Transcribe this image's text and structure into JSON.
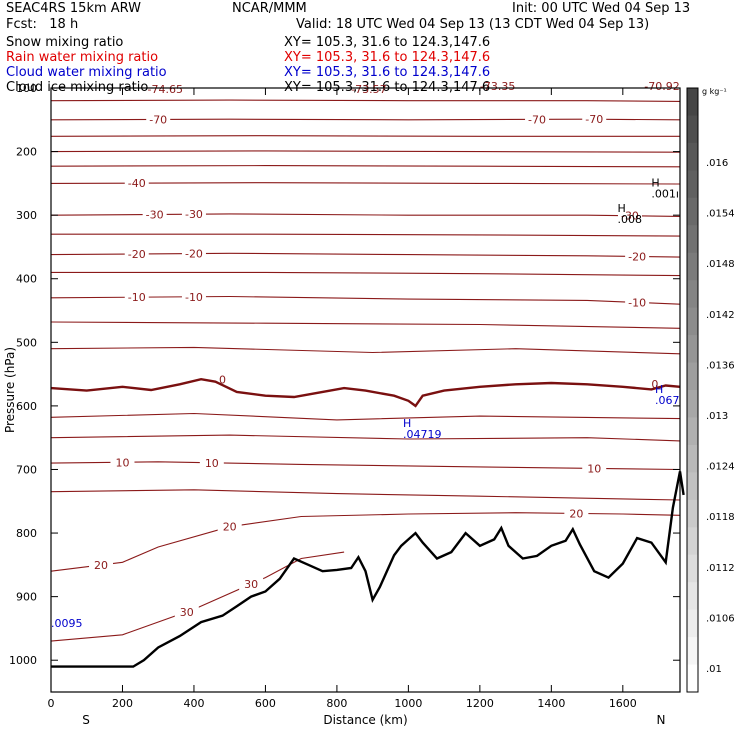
{
  "header": {
    "model": "SEAC4RS 15km ARW",
    "org": "NCAR/MMM",
    "init": "Init: 00 UTC Wed 04 Sep 13",
    "fcst": "Fcst:   18 h",
    "valid": "Valid: 18 UTC Wed 04 Sep 13 (13 CDT Wed 04 Sep 13)"
  },
  "fields": [
    {
      "name": "Snow mixing ratio",
      "xy": "XY= 105.3, 31.6 to 124.3,147.6",
      "color": "#000000"
    },
    {
      "name": "Rain water mixing ratio",
      "xy": "XY= 105.3, 31.6 to 124.3,147.6",
      "color": "#e00000"
    },
    {
      "name": "Cloud water mixing ratio",
      "xy": "XY= 105.3, 31.6 to 124.3,147.6",
      "color": "#0000cc"
    },
    {
      "name": "Cloud ice mixing ratio",
      "xy": "XY= 105.3, 31.6 to 124.3,147.6",
      "color": "#000000"
    }
  ],
  "colorbar": {
    "unit": "g kg⁻¹",
    "labels": [
      ".016",
      ".0154",
      ".0148",
      ".0142",
      ".0136",
      ".013",
      ".0124",
      ".0118",
      ".0112",
      ".0106",
      ".01"
    ]
  },
  "chart_data": {
    "type": "contour cross-section",
    "xlabel": "Distance (km)",
    "ylabel": "Pressure (hPa)",
    "xlim": [
      0,
      1760
    ],
    "ylim": [
      1050,
      100
    ],
    "xticks": [
      0,
      200,
      400,
      600,
      800,
      1000,
      1200,
      1400,
      1600
    ],
    "yticks": [
      100,
      200,
      300,
      400,
      500,
      600,
      700,
      800,
      900,
      1000
    ],
    "end_labels": {
      "left": "S",
      "right": "N"
    },
    "contour_color": "#8b1a1a",
    "freezing_level": [
      [
        0,
        572
      ],
      [
        100,
        576
      ],
      [
        200,
        570
      ],
      [
        280,
        575
      ],
      [
        360,
        566
      ],
      [
        420,
        558
      ],
      [
        460,
        562
      ],
      [
        520,
        578
      ],
      [
        600,
        584
      ],
      [
        680,
        586
      ],
      [
        760,
        578
      ],
      [
        820,
        572
      ],
      [
        880,
        576
      ],
      [
        960,
        584
      ],
      [
        1000,
        592
      ],
      [
        1020,
        600
      ],
      [
        1040,
        584
      ],
      [
        1100,
        576
      ],
      [
        1200,
        570
      ],
      [
        1300,
        566
      ],
      [
        1400,
        564
      ],
      [
        1500,
        566
      ],
      [
        1600,
        570
      ],
      [
        1680,
        574
      ],
      [
        1720,
        568
      ],
      [
        1760,
        570
      ]
    ],
    "isotherms": [
      {
        "label": "-70",
        "labels_at": [
          {
            "x": 300,
            "text": "-70"
          },
          {
            "x": 1360,
            "text": "-70"
          },
          {
            "x": 1520,
            "text": "-70"
          }
        ],
        "points": [
          [
            0,
            150
          ],
          [
            500,
            149
          ],
          [
            1000,
            150
          ],
          [
            1500,
            149
          ],
          [
            1760,
            150
          ]
        ]
      },
      {
        "label": "",
        "points": [
          [
            0,
            120
          ],
          [
            500,
            119
          ],
          [
            1000,
            120
          ],
          [
            1500,
            120
          ],
          [
            1760,
            121
          ]
        ]
      },
      {
        "label": "",
        "points": [
          [
            0,
            176
          ],
          [
            600,
            175
          ],
          [
            1200,
            176
          ],
          [
            1760,
            176
          ]
        ]
      },
      {
        "label": "",
        "points": [
          [
            0,
            200
          ],
          [
            600,
            199
          ],
          [
            1200,
            200
          ],
          [
            1760,
            201
          ]
        ]
      },
      {
        "label": "",
        "points": [
          [
            0,
            223
          ],
          [
            600,
            222
          ],
          [
            1200,
            223
          ],
          [
            1760,
            224
          ]
        ]
      },
      {
        "label": "-40",
        "labels_at": [
          {
            "x": 240,
            "text": "-40"
          }
        ],
        "points": [
          [
            0,
            250
          ],
          [
            600,
            249
          ],
          [
            1200,
            250
          ],
          [
            1760,
            251
          ]
        ]
      },
      {
        "label": "-30",
        "labels_at": [
          {
            "x": 290,
            "text": "-30"
          },
          {
            "x": 400,
            "text": "-30"
          },
          {
            "x": 1620,
            "text": "-30"
          }
        ],
        "points": [
          [
            0,
            300
          ],
          [
            500,
            298
          ],
          [
            1000,
            300
          ],
          [
            1500,
            300
          ],
          [
            1760,
            302
          ]
        ]
      },
      {
        "label": "",
        "points": [
          [
            0,
            330
          ],
          [
            600,
            330
          ],
          [
            1200,
            331
          ],
          [
            1760,
            333
          ]
        ]
      },
      {
        "label": "-20",
        "labels_at": [
          {
            "x": 240,
            "text": "-20"
          },
          {
            "x": 400,
            "text": "-20"
          },
          {
            "x": 1640,
            "text": "-20"
          }
        ],
        "points": [
          [
            0,
            362
          ],
          [
            500,
            360
          ],
          [
            1000,
            362
          ],
          [
            1500,
            364
          ],
          [
            1760,
            366
          ]
        ]
      },
      {
        "label": "",
        "points": [
          [
            0,
            390
          ],
          [
            600,
            390
          ],
          [
            1200,
            392
          ],
          [
            1760,
            395
          ]
        ]
      },
      {
        "label": "-10",
        "labels_at": [
          {
            "x": 240,
            "text": "-10"
          },
          {
            "x": 400,
            "text": "-10"
          },
          {
            "x": 1640,
            "text": "-10"
          }
        ],
        "points": [
          [
            0,
            430
          ],
          [
            500,
            428
          ],
          [
            1000,
            432
          ],
          [
            1500,
            434
          ],
          [
            1760,
            440
          ]
        ]
      },
      {
        "label": "",
        "points": [
          [
            0,
            468
          ],
          [
            600,
            470
          ],
          [
            1200,
            472
          ],
          [
            1760,
            478
          ]
        ]
      },
      {
        "label": "",
        "points": [
          [
            0,
            510
          ],
          [
            400,
            508
          ],
          [
            900,
            516
          ],
          [
            1300,
            510
          ],
          [
            1760,
            518
          ]
        ]
      },
      {
        "label": "",
        "points": [
          [
            0,
            618
          ],
          [
            400,
            612
          ],
          [
            800,
            622
          ],
          [
            1200,
            616
          ],
          [
            1760,
            620
          ]
        ]
      },
      {
        "label": "",
        "points": [
          [
            0,
            650
          ],
          [
            500,
            646
          ],
          [
            1000,
            652
          ],
          [
            1500,
            650
          ],
          [
            1760,
            655
          ]
        ]
      },
      {
        "label": "10",
        "labels_at": [
          {
            "x": 200,
            "text": "10"
          },
          {
            "x": 450,
            "text": "10"
          },
          {
            "x": 1520,
            "text": "10"
          }
        ],
        "points": [
          [
            0,
            690
          ],
          [
            300,
            688
          ],
          [
            700,
            692
          ],
          [
            1200,
            696
          ],
          [
            1760,
            700
          ]
        ]
      },
      {
        "label": "",
        "points": [
          [
            0,
            735
          ],
          [
            400,
            732
          ],
          [
            800,
            738
          ],
          [
            1200,
            742
          ],
          [
            1760,
            748
          ]
        ]
      },
      {
        "label": "20",
        "labels_at": [
          {
            "x": 140,
            "text": "20"
          },
          {
            "x": 500,
            "text": "20"
          },
          {
            "x": 1470,
            "text": "20"
          }
        ],
        "points": [
          [
            0,
            860
          ],
          [
            200,
            846
          ],
          [
            300,
            822
          ],
          [
            500,
            790
          ],
          [
            700,
            774
          ],
          [
            1000,
            770
          ],
          [
            1300,
            768
          ],
          [
            1600,
            770
          ],
          [
            1760,
            772
          ]
        ]
      },
      {
        "label": "30",
        "labels_at": [
          {
            "x": 380,
            "text": "30"
          },
          {
            "x": 560,
            "text": "30"
          }
        ],
        "points": [
          [
            0,
            970
          ],
          [
            200,
            960
          ],
          [
            400,
            920
          ],
          [
            600,
            870
          ],
          [
            700,
            840
          ],
          [
            820,
            830
          ]
        ]
      }
    ],
    "terrain": [
      [
        0,
        1010
      ],
      [
        130,
        1010
      ],
      [
        230,
        1010
      ],
      [
        260,
        1000
      ],
      [
        300,
        980
      ],
      [
        360,
        962
      ],
      [
        420,
        940
      ],
      [
        480,
        930
      ],
      [
        520,
        915
      ],
      [
        560,
        900
      ],
      [
        600,
        892
      ],
      [
        640,
        872
      ],
      [
        680,
        840
      ],
      [
        720,
        850
      ],
      [
        760,
        860
      ],
      [
        800,
        858
      ],
      [
        840,
        855
      ],
      [
        860,
        838
      ],
      [
        880,
        860
      ],
      [
        900,
        905
      ],
      [
        920,
        885
      ],
      [
        940,
        860
      ],
      [
        960,
        835
      ],
      [
        980,
        820
      ],
      [
        1000,
        810
      ],
      [
        1020,
        800
      ],
      [
        1040,
        815
      ],
      [
        1080,
        840
      ],
      [
        1120,
        830
      ],
      [
        1160,
        800
      ],
      [
        1200,
        820
      ],
      [
        1240,
        810
      ],
      [
        1260,
        792
      ],
      [
        1280,
        820
      ],
      [
        1320,
        840
      ],
      [
        1360,
        836
      ],
      [
        1400,
        820
      ],
      [
        1440,
        812
      ],
      [
        1460,
        794
      ],
      [
        1480,
        818
      ],
      [
        1520,
        860
      ],
      [
        1560,
        870
      ],
      [
        1600,
        848
      ],
      [
        1640,
        808
      ],
      [
        1680,
        815
      ],
      [
        1720,
        846
      ],
      [
        1740,
        760
      ],
      [
        1760,
        703
      ],
      [
        1770,
        740
      ]
    ],
    "annotations": [
      {
        "x": 270,
        "p": 108,
        "text": "-74.65"
      },
      {
        "x": 840,
        "p": 108,
        "text": "-73.57"
      },
      {
        "x": 1200,
        "p": 103,
        "text": "-73.35"
      },
      {
        "x": 1660,
        "p": 103,
        "text": "-70.92"
      },
      {
        "x": 1680,
        "p": 255,
        "text": "H\n.001ı"
      },
      {
        "x": 1585,
        "p": 295,
        "text": "H\n.008"
      },
      {
        "x": 985,
        "p": 633,
        "text": "H\n.04719"
      },
      {
        "x": 1690,
        "p": 580,
        "text": "H\n.067"
      },
      {
        "x": 0,
        "p": 948,
        "text": ".0095"
      },
      {
        "x": 470,
        "p": 565,
        "text": "0"
      },
      {
        "x": 1680,
        "p": 572,
        "text": "0"
      }
    ]
  }
}
